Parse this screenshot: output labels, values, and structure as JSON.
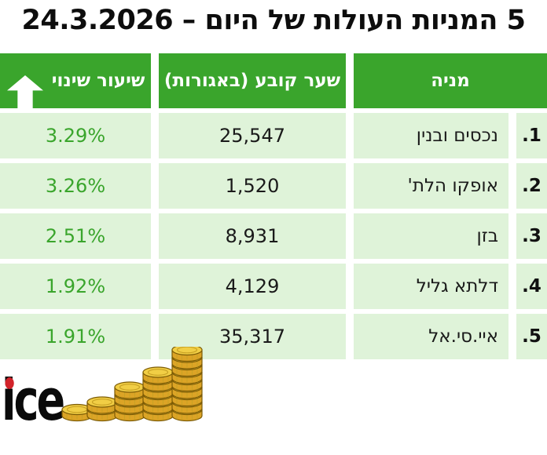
{
  "title": "5 המניות העולות של היום – 24.3.2026",
  "table": {
    "headers": {
      "change": "שיעור שינוי",
      "price": "שער קובע (באגורות)",
      "stock": "מניה"
    },
    "rows": [
      {
        "rank": "1.",
        "stock": "נכסים ובנין",
        "price": "25,547",
        "change": "3.29%"
      },
      {
        "rank": "2.",
        "stock": "אופקו הלת'",
        "price": "1,520",
        "change": "3.26%"
      },
      {
        "rank": "3.",
        "stock": "בזן",
        "price": "8,931",
        "change": "2.51%"
      },
      {
        "rank": "4.",
        "stock": "דלתא גליל",
        "price": "4,129",
        "change": "1.92%"
      },
      {
        "rank": "5.",
        "stock": "איי.סי.אל",
        "price": "35,317",
        "change": "1.91%"
      }
    ]
  },
  "logo": {
    "text": "ice",
    "period": "."
  },
  "icons": {
    "header_arrow": "arrow-up-icon",
    "coins": "coin-stacks-illustration"
  },
  "coins": {
    "stacks": [
      1,
      2,
      4,
      6,
      9
    ]
  },
  "colors": {
    "header_green": "#3aa52c",
    "row_green": "#dff3d9",
    "percent_green": "#3aa52c",
    "logo_red": "#d2232a",
    "coin_face": "#f1ce45",
    "coin_side": "#dca426",
    "coin_stroke": "#7c5b05",
    "coin_ring": "#c9a224"
  },
  "chart_data": {
    "type": "table",
    "title": "5 המניות העולות של היום – 24.3.2026",
    "columns": [
      "מניה",
      "שער קובע (באגורות)",
      "שיעור שינוי"
    ],
    "rows": [
      [
        "נכסים ובנין",
        25547,
        "3.29%"
      ],
      [
        "אופקו הלת'",
        1520,
        "3.26%"
      ],
      [
        "בזן",
        8931,
        "2.51%"
      ],
      [
        "דלתא גליל",
        4129,
        "1.92%"
      ],
      [
        "איי.סי.אל",
        35317,
        "1.91%"
      ]
    ]
  }
}
